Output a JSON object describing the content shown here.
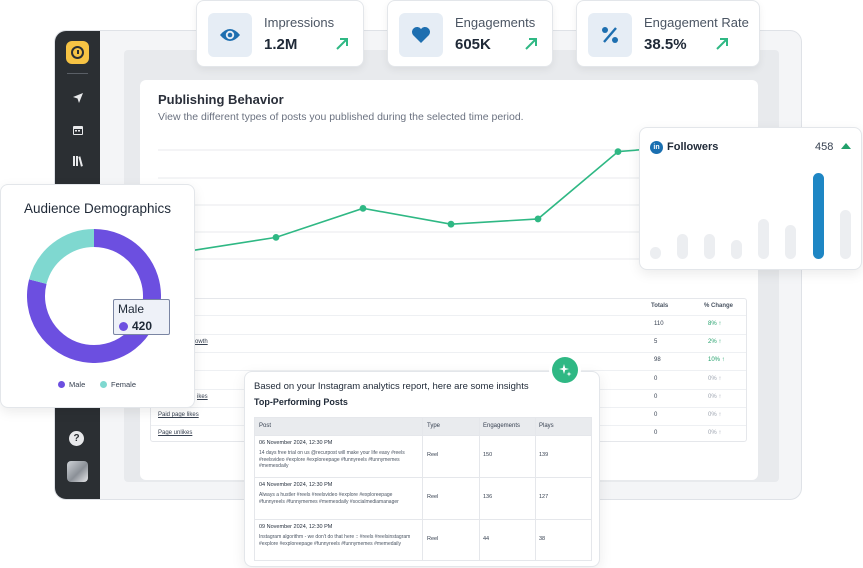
{
  "kpis": [
    {
      "label": "Impressions",
      "value": "1.2M",
      "icon": "eye-icon"
    },
    {
      "label": "Engagements",
      "value": "605K",
      "icon": "heart-icon"
    },
    {
      "label": "Engagement Rate",
      "value": "38.5%",
      "icon": "percent-icon"
    }
  ],
  "colors": {
    "accent_green": "#2fb884",
    "trend_up": "#22a06b",
    "male": "#6c4fe0",
    "female": "#7fd8d0",
    "linkedin": "#1a6fb0",
    "sidebar": "#2b2f33"
  },
  "publishing": {
    "title": "Publishing Behavior",
    "subtitle": "View the different types of posts you published during the selected time period."
  },
  "chart_data": [
    {
      "type": "line",
      "title": "Publishing Behavior",
      "points": [
        0.2,
        0.3,
        0.52,
        0.4,
        0.44,
        0.95,
        1.0
      ],
      "color": "#2fb884",
      "grid": true
    },
    {
      "type": "pie",
      "title": "Audience Demographics",
      "slices": [
        {
          "name": "Male",
          "value": 420,
          "fraction": 0.79,
          "color": "#6c4fe0"
        },
        {
          "name": "Female",
          "fraction": 0.21,
          "color": "#7fd8d0"
        }
      ],
      "legend": "bottom"
    },
    {
      "type": "bar",
      "title": "Followers",
      "values": [
        0.14,
        0.29,
        0.29,
        0.22,
        0.47,
        0.4,
        1.0,
        0.57
      ],
      "highlight_index": 6
    }
  ],
  "metrics_table": {
    "headers": [
      "Totals",
      "% Change"
    ],
    "rows": [
      {
        "label": "",
        "total": "110",
        "change": "8%",
        "up": true
      },
      {
        "label": "rowth",
        "total": "5",
        "change": "2%",
        "up": true
      },
      {
        "label": "",
        "total": "98",
        "change": "10%",
        "up": true
      },
      {
        "label": "",
        "total": "0",
        "change": "0%",
        "up": false
      },
      {
        "label": "ikes",
        "total": "0",
        "change": "0%",
        "up": false
      },
      {
        "label": "Paid page likes",
        "total": "0",
        "change": "0%",
        "up": false
      },
      {
        "label": "Page unlikes",
        "total": "0",
        "change": "0%",
        "up": false
      }
    ]
  },
  "followers": {
    "title": "Followers",
    "count": "458",
    "badge": "in"
  },
  "demographics": {
    "title": "Audience Demographics",
    "tooltip_label": "Male",
    "tooltip_value": "420",
    "legend": [
      "Male",
      "Female"
    ]
  },
  "insights": {
    "intro": "Based on your Instagram analytics report, here are some insights",
    "title": "Top-Performing Posts",
    "headers": [
      "Post",
      "Type",
      "Engagements",
      "Plays"
    ],
    "rows": [
      {
        "date": "06 November 2024, 12:30 PM",
        "caption": "14 days free trial on us @recurpost will make your life easy #reels #reelsvideo #explore #exploreepage #funnyreels #funnymemes #memesdaily",
        "type": "Reel",
        "engagements": "150",
        "plays": "139"
      },
      {
        "date": "04 November 2024, 12:30 PM",
        "caption": "Always a hustler #reels #reelsvideo #explore #exploreepage #funnyreels #funnymemes #memesdaily #socialmediamanager",
        "type": "Reel",
        "engagements": "136",
        "plays": "127"
      },
      {
        "date": "09 November 2024, 12:30 PM",
        "caption": "Instagram algorithm - we don't do that here :: #reels #reelsinstagram #explore #exploreepage #funnyreels #funnymemes #memedaily",
        "type": "Reel",
        "engagements": "44",
        "plays": "38"
      }
    ]
  },
  "sidebar_icons": [
    "send-icon",
    "calendar-icon",
    "library-icon"
  ],
  "help_label": "?"
}
